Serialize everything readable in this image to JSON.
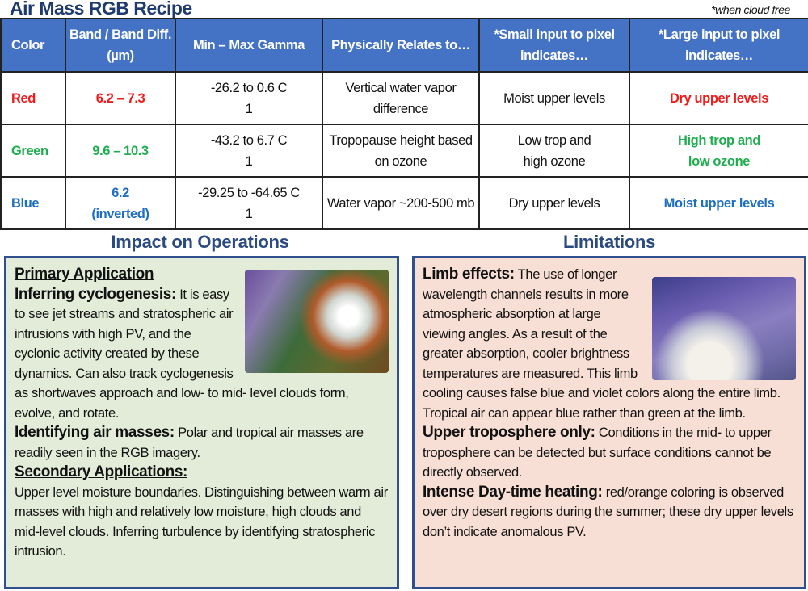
{
  "title": "Air Mass RGB Recipe",
  "note": "*when cloud free",
  "table": {
    "headers": [
      "Color",
      "Band / Band Diff. (µm)",
      "Min – Max Gamma",
      "Physically Relates to…",
      "*Small input to pixel indicates…",
      "*Large input to pixel indicates…"
    ],
    "header_small_prefix": "*",
    "header_small_u": "Small",
    "header_small_rest": " input to pixel indicates…",
    "header_large_u": "Large",
    "header_large_rest": " input to pixel indicates…",
    "rows": [
      {
        "color": "Red",
        "band": "6.2 – 7.3",
        "range": "-26.2 to 0.6 C",
        "gamma": "1",
        "relates": "Vertical water vapor difference",
        "small": "Moist upper levels",
        "large": "Dry upper levels"
      },
      {
        "color": "Green",
        "band": "9.6 – 10.3",
        "range": "-43.2 to 6.7 C",
        "gamma": "1",
        "relates": "Tropopause height based on ozone",
        "small": "Low trop and high ozone",
        "large": "High trop and low ozone"
      },
      {
        "color": "Blue",
        "band": "6.2",
        "band2": "(inverted)",
        "range": "-29.25 to -64.65 C",
        "gamma": "1",
        "relates": "Water vapor ~200-500 mb",
        "small": "Dry upper levels",
        "large": "Moist upper levels"
      }
    ]
  },
  "impact": {
    "title": "Impact on Operations",
    "primary": "Primary Application",
    "p1_head": "Inferring cyclogenesis:",
    "p1": " It is easy to see jet streams and stratospheric air intrusions with high PV, and the cyclonic activity created by these dynamics. Can also track cyclogenesis as shortwaves approach and low- to mid- level clouds form, evolve, and rotate.",
    "p2_head": "Identifying air masses:",
    "p2": " Polar and tropical air masses are readily seen in the RGB imagery.",
    "secondary": "Secondary Applications:",
    "p3": "Upper level moisture boundaries. Distinguishing between warm air masses with high and relatively low moisture, high clouds and mid-level clouds. Inferring turbulence by identifying stratospheric intrusion."
  },
  "limitations": {
    "title": "Limitations",
    "p1_head": "Limb effects:",
    "p1": " The use of longer wavelength channels results in more atmospheric absorption at large viewing angles.  As a result of the greater absorption, cooler brightness temperatures are measured.  This limb cooling causes false blue and violet colors along the entire limb.  Tropical air can appear blue rather than green at the limb.",
    "p2_head": "Upper troposphere only:",
    "p2": " Conditions in the mid- to upper troposphere can be detected but surface conditions cannot be directly observed.",
    "p3_head": "Intense Day-time heating:",
    "p3": " red/orange coloring is observed over dry desert regions during the summer; these dry upper levels don’t indicate  anomalous PV."
  }
}
